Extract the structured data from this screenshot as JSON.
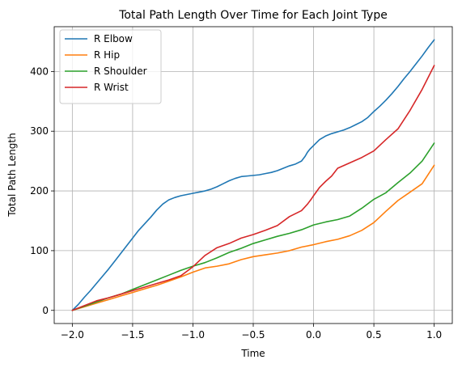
{
  "chart_data": {
    "type": "line",
    "title": "Total Path Length Over Time for Each Joint Type",
    "xlabel": "Time",
    "ylabel": "Total Path Length",
    "xlim": [
      -2.15,
      1.15
    ],
    "ylim": [
      -22,
      475
    ],
    "xticks": [
      -2.0,
      -1.5,
      -1.0,
      -0.5,
      0.0,
      0.5,
      1.0
    ],
    "xtick_labels": [
      "−2.0",
      "−1.5",
      "−1.0",
      "−0.5",
      "0.0",
      "0.5",
      "1.0"
    ],
    "yticks": [
      0,
      100,
      200,
      300,
      400
    ],
    "ytick_labels": [
      "0",
      "100",
      "200",
      "300",
      "400"
    ],
    "grid": true,
    "legend_position": "top-left",
    "series": [
      {
        "name": "R Elbow",
        "color": "#1f77b4",
        "x": [
          -2.0,
          -1.95,
          -1.9,
          -1.85,
          -1.8,
          -1.75,
          -1.7,
          -1.65,
          -1.6,
          -1.55,
          -1.5,
          -1.45,
          -1.4,
          -1.35,
          -1.3,
          -1.25,
          -1.2,
          -1.15,
          -1.1,
          -1.05,
          -1.0,
          -0.95,
          -0.9,
          -0.85,
          -0.8,
          -0.75,
          -0.7,
          -0.65,
          -0.6,
          -0.55,
          -0.5,
          -0.45,
          -0.4,
          -0.35,
          -0.3,
          -0.25,
          -0.2,
          -0.15,
          -0.1,
          -0.07,
          -0.05,
          -0.03,
          0.0,
          0.05,
          0.1,
          0.15,
          0.2,
          0.25,
          0.3,
          0.35,
          0.4,
          0.45,
          0.5,
          0.55,
          0.6,
          0.65,
          0.7,
          0.75,
          0.8,
          0.85,
          0.9,
          0.95,
          1.0
        ],
        "y": [
          0,
          10,
          22,
          33,
          45,
          57,
          69,
          82,
          95,
          108,
          121,
          134,
          145,
          156,
          168,
          178,
          185,
          189,
          192,
          194,
          196,
          198,
          200,
          203,
          207,
          212,
          217,
          221,
          224,
          225,
          226,
          227,
          229,
          231,
          234,
          238,
          242,
          245,
          250,
          258,
          265,
          270,
          276,
          286,
          292,
          296,
          299,
          302,
          306,
          311,
          316,
          323,
          333,
          342,
          352,
          363,
          375,
          388,
          400,
          413,
          426,
          440,
          453
        ]
      },
      {
        "name": "R Hip",
        "color": "#ff7f0e",
        "x": [
          -2.0,
          -1.9,
          -1.8,
          -1.7,
          -1.6,
          -1.5,
          -1.4,
          -1.3,
          -1.2,
          -1.1,
          -1.0,
          -0.9,
          -0.8,
          -0.7,
          -0.6,
          -0.5,
          -0.4,
          -0.3,
          -0.2,
          -0.1,
          0.0,
          0.1,
          0.2,
          0.3,
          0.4,
          0.5,
          0.6,
          0.7,
          0.8,
          0.9,
          1.0
        ],
        "y": [
          0,
          6,
          12,
          18,
          24,
          30,
          36,
          42,
          49,
          56,
          64,
          71,
          74,
          78,
          85,
          90,
          93,
          96,
          100,
          106,
          110,
          115,
          119,
          125,
          134,
          147,
          166,
          184,
          198,
          212,
          243
        ]
      },
      {
        "name": "R Shoulder",
        "color": "#2ca02c",
        "x": [
          -2.0,
          -1.9,
          -1.8,
          -1.7,
          -1.6,
          -1.5,
          -1.4,
          -1.3,
          -1.2,
          -1.1,
          -1.0,
          -0.9,
          -0.8,
          -0.7,
          -0.6,
          -0.5,
          -0.4,
          -0.3,
          -0.2,
          -0.1,
          0.0,
          0.1,
          0.2,
          0.3,
          0.4,
          0.5,
          0.6,
          0.7,
          0.8,
          0.9,
          1.0
        ],
        "y": [
          0,
          7,
          14,
          21,
          27,
          35,
          43,
          51,
          59,
          67,
          74,
          80,
          88,
          97,
          104,
          112,
          118,
          124,
          129,
          135,
          143,
          148,
          152,
          158,
          171,
          186,
          197,
          214,
          230,
          250,
          280
        ]
      },
      {
        "name": "R Wrist",
        "color": "#d62728",
        "x": [
          -2.0,
          -1.9,
          -1.8,
          -1.7,
          -1.6,
          -1.5,
          -1.4,
          -1.3,
          -1.2,
          -1.1,
          -1.0,
          -0.9,
          -0.8,
          -0.7,
          -0.6,
          -0.5,
          -0.4,
          -0.3,
          -0.2,
          -0.1,
          -0.05,
          -0.02,
          0.0,
          0.05,
          0.1,
          0.15,
          0.2,
          0.3,
          0.4,
          0.5,
          0.6,
          0.7,
          0.8,
          0.9,
          1.0
        ],
        "y": [
          0,
          8,
          16,
          21,
          27,
          33,
          39,
          45,
          51,
          58,
          73,
          92,
          105,
          112,
          121,
          127,
          134,
          142,
          157,
          167,
          178,
          186,
          192,
          206,
          216,
          225,
          238,
          247,
          256,
          267,
          286,
          304,
          335,
          370,
          410
        ]
      }
    ]
  }
}
